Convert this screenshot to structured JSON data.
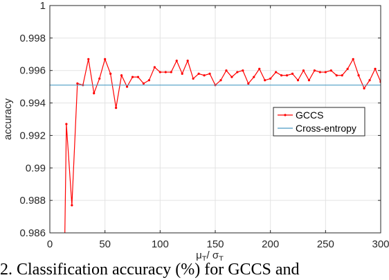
{
  "chart_data": {
    "type": "line",
    "title": "",
    "xlabel_main": "μ",
    "xlabel_sub": "T",
    "xlabel_sep": "/ ",
    "xlabel_main2": "σ",
    "xlabel_sub2": "T",
    "ylabel": "accuracy",
    "xlim": [
      0,
      300
    ],
    "ylim": [
      0.986,
      1.0
    ],
    "xticks": [
      0,
      50,
      100,
      150,
      200,
      250,
      300
    ],
    "xtick_labels": [
      "0",
      "50",
      "100",
      "150",
      "200",
      "250",
      "300"
    ],
    "yticks": [
      0.986,
      0.988,
      0.99,
      0.992,
      0.994,
      0.996,
      0.998,
      1.0
    ],
    "ytick_labels": [
      "0.986",
      "0.988",
      "0.99",
      "0.992",
      "0.994",
      "0.996",
      "0.998",
      "1"
    ],
    "grid": true,
    "legend_position": "right-middle",
    "series": [
      {
        "name": "GCCS",
        "color": "#ff0000",
        "marker": "dot",
        "x": [
          15,
          20,
          25,
          30,
          35,
          40,
          45,
          50,
          55,
          60,
          65,
          70,
          75,
          80,
          85,
          90,
          95,
          100,
          105,
          110,
          115,
          120,
          125,
          130,
          135,
          140,
          145,
          150,
          155,
          160,
          165,
          170,
          175,
          180,
          185,
          190,
          195,
          200,
          205,
          210,
          215,
          220,
          225,
          230,
          235,
          240,
          245,
          250,
          255,
          260,
          265,
          270,
          275,
          280,
          285,
          290,
          295,
          300
        ],
        "y": [
          0.9927,
          0.9877,
          0.9952,
          0.9951,
          0.9967,
          0.9946,
          0.9955,
          0.9967,
          0.9958,
          0.9937,
          0.9957,
          0.995,
          0.9956,
          0.9956,
          0.9952,
          0.9954,
          0.9962,
          0.9959,
          0.9959,
          0.9959,
          0.9966,
          0.9958,
          0.9966,
          0.9955,
          0.9958,
          0.9957,
          0.9958,
          0.9951,
          0.9954,
          0.996,
          0.9956,
          0.9959,
          0.996,
          0.9952,
          0.9956,
          0.9961,
          0.9954,
          0.9955,
          0.9959,
          0.9957,
          0.9957,
          0.9958,
          0.9954,
          0.996,
          0.9954,
          0.996,
          0.9959,
          0.9959,
          0.996,
          0.9957,
          0.9957,
          0.9961,
          0.9967,
          0.9957,
          0.9949,
          0.9954,
          0.9961,
          0.9953
        ]
      },
      {
        "name": "Cross-entropy",
        "color": "#4a9bc4",
        "marker": "none",
        "x": [
          0,
          300
        ],
        "y": [
          0.9951,
          0.9951
        ]
      }
    ]
  },
  "caption": "2.  Classification accuracy (%) for GCCS and"
}
